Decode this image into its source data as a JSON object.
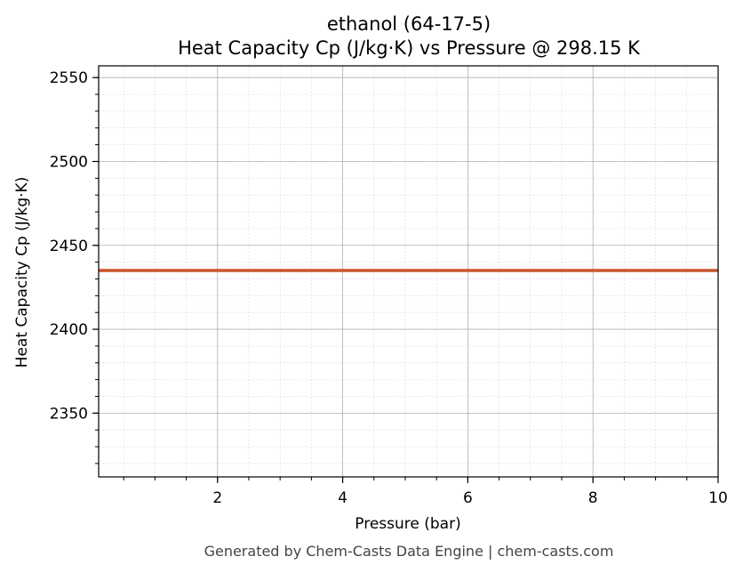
{
  "chart_data": {
    "type": "line",
    "title": "ethanol (64-17-5)",
    "subtitle": "Heat Capacity Cp (J/kg·K) vs Pressure @ 298.15 K",
    "xlabel": "Pressure (bar)",
    "ylabel": "Heat Capacity Cp (J/kg·K)",
    "xlim": [
      0.1,
      10
    ],
    "ylim": [
      2312,
      2557
    ],
    "x_ticks": [
      2,
      4,
      6,
      8,
      10
    ],
    "y_ticks": [
      2350,
      2400,
      2450,
      2500,
      2550
    ],
    "x_minor_step": 0.5,
    "y_minor_step": 10,
    "grid": true,
    "series": [
      {
        "color": "#c8552a",
        "x": [
          0.1,
          10
        ],
        "y": [
          2435,
          2435
        ]
      }
    ]
  },
  "footer": "Generated by Chem-Casts Data Engine | chem-casts.com"
}
